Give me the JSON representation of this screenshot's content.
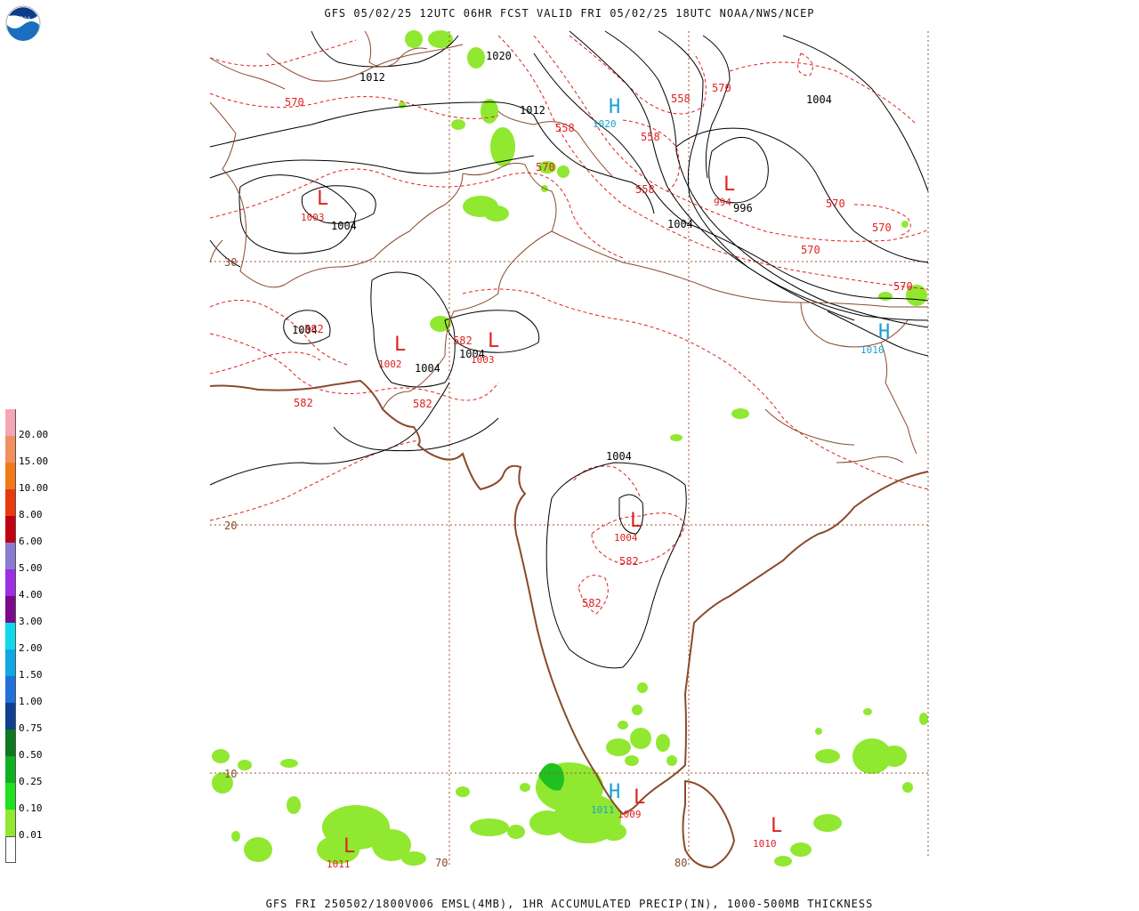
{
  "header": {
    "title": "GFS 05/02/25 12UTC 06HR FCST VALID FRI 05/02/25 18UTC NOAA/NWS/NCEP"
  },
  "footer": {
    "caption": "GFS FRI 250502/1800V006 EMSL(4MB), 1HR ACCUMULATED PRECIP(IN), 1000-500MB THICKNESS"
  },
  "logo": {
    "text": "NOAA",
    "icon": "noaa-logo-icon"
  },
  "legend": {
    "items": [
      {
        "label": "20.00",
        "color": "#f4a6b6"
      },
      {
        "label": "15.00",
        "color": "#f09060"
      },
      {
        "label": "10.00",
        "color": "#f07a1a"
      },
      {
        "label": "8.00",
        "color": "#e83a10"
      },
      {
        "label": "6.00",
        "color": "#c00010"
      },
      {
        "label": "5.00",
        "color": "#8a7ad0"
      },
      {
        "label": "4.00",
        "color": "#9a30e0"
      },
      {
        "label": "3.00",
        "color": "#7a0a8a"
      },
      {
        "label": "2.00",
        "color": "#10d8e8"
      },
      {
        "label": "1.50",
        "color": "#10a8e0"
      },
      {
        "label": "1.00",
        "color": "#2070d8"
      },
      {
        "label": "0.75",
        "color": "#104090"
      },
      {
        "label": "0.50",
        "color": "#107820"
      },
      {
        "label": "0.25",
        "color": "#10b020"
      },
      {
        "label": "0.10",
        "color": "#20e020"
      },
      {
        "label": "0.01",
        "color": "#90e830"
      },
      {
        "label": "",
        "color": "#ffffff"
      }
    ]
  },
  "grid": {
    "lat_labels": [
      "30",
      "20",
      "10"
    ],
    "lon_labels": [
      "70",
      "80"
    ]
  },
  "pressure_labels": [
    "1020",
    "1012",
    "1012",
    "1004",
    "1004",
    "1004",
    "1004",
    "1004",
    "1004",
    "1004",
    "996"
  ],
  "thickness_labels": [
    "570",
    "570",
    "570",
    "570",
    "570",
    "570",
    "570",
    "558",
    "558",
    "558",
    "558",
    "582",
    "582",
    "582",
    "582",
    "582",
    "582"
  ],
  "highs": [
    {
      "symbol": "H",
      "value": "1020"
    },
    {
      "symbol": "H",
      "value": "1010"
    },
    {
      "symbol": "H",
      "value": "1011"
    }
  ],
  "lows": [
    {
      "symbol": "L",
      "value": "1003"
    },
    {
      "symbol": "L",
      "value": "994"
    },
    {
      "symbol": "L",
      "value": "1002"
    },
    {
      "symbol": "L",
      "value": "1003"
    },
    {
      "symbol": "L",
      "value": "1004"
    },
    {
      "symbol": "L",
      "value": "1009"
    },
    {
      "symbol": "L",
      "value": "1010"
    },
    {
      "symbol": "L",
      "value": "1011"
    }
  ],
  "extra_labels": [
    "582",
    "582"
  ],
  "colors": {
    "coast": "#8b4a2b",
    "isobar": "#000000",
    "thickness": "#e02020",
    "high": "#1aa0d0",
    "low": "#e02020",
    "precip": "#90e830",
    "precip_dark": "#20c020"
  }
}
